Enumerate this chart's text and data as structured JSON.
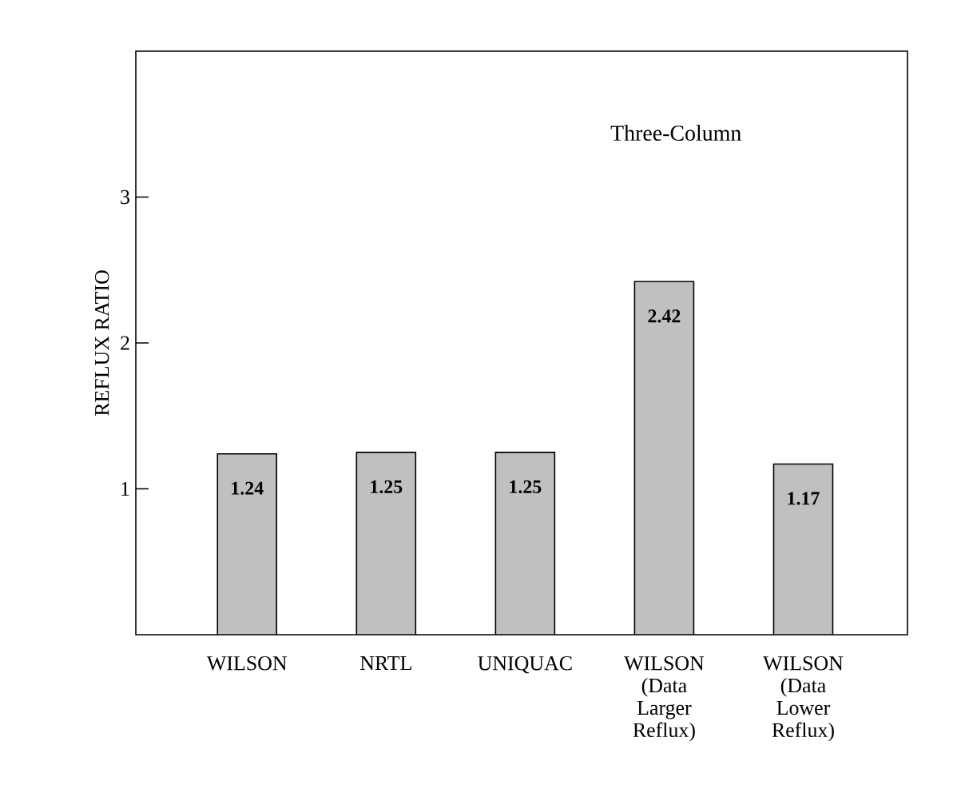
{
  "chart_data": {
    "type": "bar",
    "title": "Three-Column",
    "ylabel": "REFLUX RATIO",
    "categories": [
      "WILSON",
      "NRTL",
      "UNIQUAC",
      "WILSON (Data Larger Reflux)",
      "WILSON (Data Lower Reflux)"
    ],
    "values": [
      1.24,
      1.25,
      1.25,
      2.42,
      1.17
    ],
    "color": "#c0c0c0",
    "ylim": [
      0,
      4
    ],
    "yticks": [
      1,
      2,
      3
    ],
    "data_labels": true
  }
}
